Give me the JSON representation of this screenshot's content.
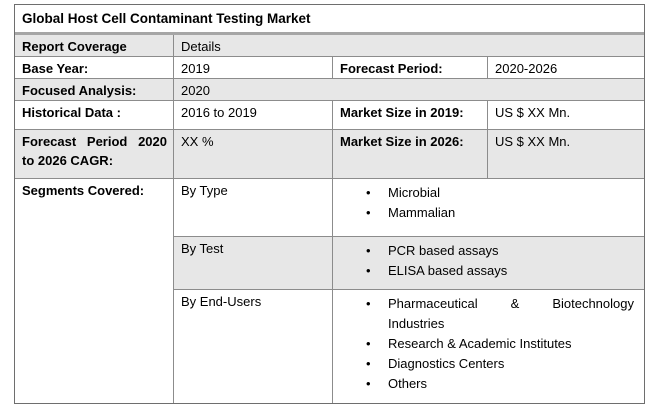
{
  "table": {
    "title": "Global Host Cell Contaminant Testing Market",
    "report_coverage": {
      "label": "Report Coverage",
      "value": "Details"
    },
    "base_year": {
      "label": "Base Year:",
      "value": "2019"
    },
    "forecast_period": {
      "label": "Forecast Period:",
      "value": "2020-2026"
    },
    "focused_analysis": {
      "label": "Focused Analysis:",
      "value": "2020"
    },
    "historical_data": {
      "label": "Historical Data :",
      "value": "2016 to 2019"
    },
    "market_size_2019": {
      "label": "Market Size in 2019:",
      "value": "US $ XX Mn."
    },
    "cagr": {
      "label": "Forecast Period 2020 to 2026 CAGR:",
      "value": "XX %"
    },
    "market_size_2026": {
      "label": "Market Size in 2026:",
      "value": "US $ XX Mn."
    },
    "segments": {
      "label": "Segments Covered:",
      "groups": [
        {
          "name": "By Type",
          "items": [
            "Microbial",
            "Mammalian"
          ]
        },
        {
          "name": "By Test",
          "items": [
            "PCR based assays",
            "ELISA based assays"
          ]
        },
        {
          "name": "By End-Users",
          "items": [
            "Pharmaceutical & Biotechnology Industries",
            "Research & Academic Institutes",
            "Diagnostics Centers",
            "Others"
          ]
        }
      ]
    },
    "colors": {
      "row_alt": "#e7e7e7",
      "grid_border": "#8c8c8c",
      "title_underline": "#a6a6a6"
    }
  }
}
